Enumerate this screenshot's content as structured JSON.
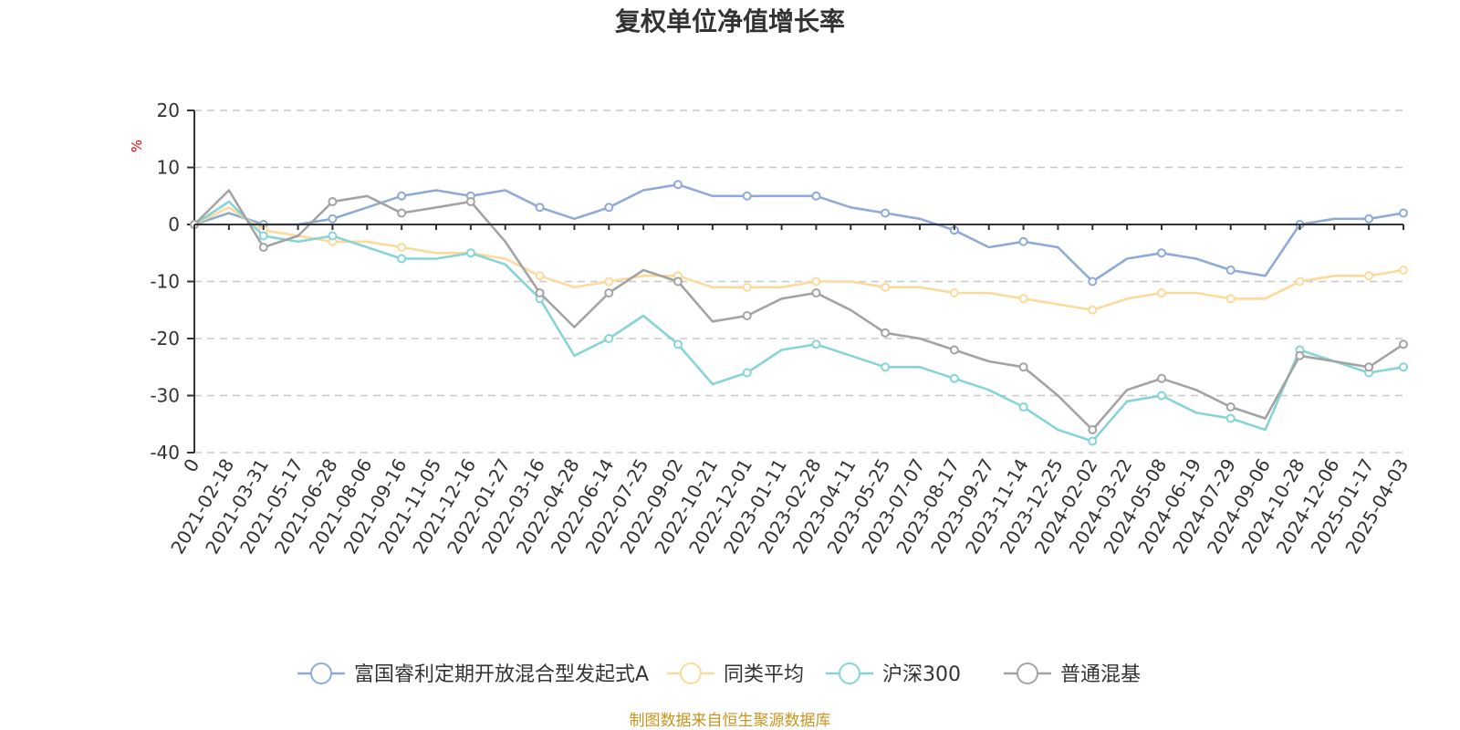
{
  "chart_data": {
    "type": "line",
    "title": "复权单位净值增长率",
    "ylabel": "%",
    "ylim": [
      -40,
      20
    ],
    "yticks": [
      20,
      10,
      0,
      -10,
      -20,
      -30,
      -40
    ],
    "grid": true,
    "legend_position": "bottom",
    "source_note": "制图数据来自恒生聚源数据库",
    "categories": [
      "0",
      "2021-02-18",
      "2021-03-31",
      "2021-05-17",
      "2021-06-28",
      "2021-08-06",
      "2021-09-16",
      "2021-11-05",
      "2021-12-16",
      "2022-01-27",
      "2022-03-16",
      "2022-04-28",
      "2022-06-14",
      "2022-07-25",
      "2022-09-02",
      "2022-10-21",
      "2022-12-01",
      "2023-01-11",
      "2023-02-28",
      "2023-04-11",
      "2023-05-25",
      "2023-07-07",
      "2023-08-17",
      "2023-09-27",
      "2023-11-14",
      "2023-12-25",
      "2024-02-02",
      "2024-03-22",
      "2024-05-08",
      "2024-06-19",
      "2024-07-29",
      "2024-09-06",
      "2024-10-28",
      "2024-12-06",
      "2025-01-17",
      "2025-04-03"
    ],
    "series": [
      {
        "name": "富国睿利定期开放混合型发起式A",
        "color": "#8eaad8",
        "values": [
          0,
          2,
          0,
          0,
          1,
          3,
          5,
          6,
          5,
          6,
          3,
          1,
          3,
          6,
          7,
          5,
          5,
          5,
          5,
          3,
          2,
          1,
          -1,
          -4,
          -3,
          -4,
          -10,
          -6,
          -5,
          -6,
          -8,
          -9,
          0,
          1,
          1,
          2
        ]
      },
      {
        "name": "同类平均",
        "color": "#fdd99a",
        "values": [
          0,
          3,
          -1,
          -2,
          -3,
          -3,
          -4,
          -5,
          -5,
          -6,
          -9,
          -11,
          -10,
          -9,
          -9,
          -11,
          -11,
          -11,
          -10,
          -10,
          -11,
          -11,
          -12,
          -12,
          -13,
          -14,
          -15,
          -13,
          -12,
          -12,
          -13,
          -13,
          -10,
          -9,
          -9,
          -8
        ]
      },
      {
        "name": "沪深300",
        "color": "#86d4d8",
        "values": [
          0,
          4,
          -2,
          -3,
          -2,
          -4,
          -6,
          -6,
          -5,
          -7,
          -13,
          -23,
          -20,
          -16,
          -21,
          -28,
          -26,
          -22,
          -21,
          -23,
          -25,
          -25,
          -27,
          -29,
          -32,
          -36,
          -38,
          -31,
          -30,
          -33,
          -34,
          -36,
          -22,
          -24,
          -26,
          -25
        ]
      },
      {
        "name": "普通混基",
        "color": "#a3a3a3",
        "values": [
          0,
          6,
          -4,
          -2,
          4,
          5,
          2,
          3,
          4,
          -3,
          -12,
          -18,
          -12,
          -8,
          -10,
          -17,
          -16,
          -13,
          -12,
          -15,
          -19,
          -20,
          -22,
          -24,
          -25,
          -30,
          -36,
          -29,
          -27,
          -29,
          -32,
          -34,
          -23,
          -24,
          -25,
          -21
        ]
      }
    ]
  }
}
